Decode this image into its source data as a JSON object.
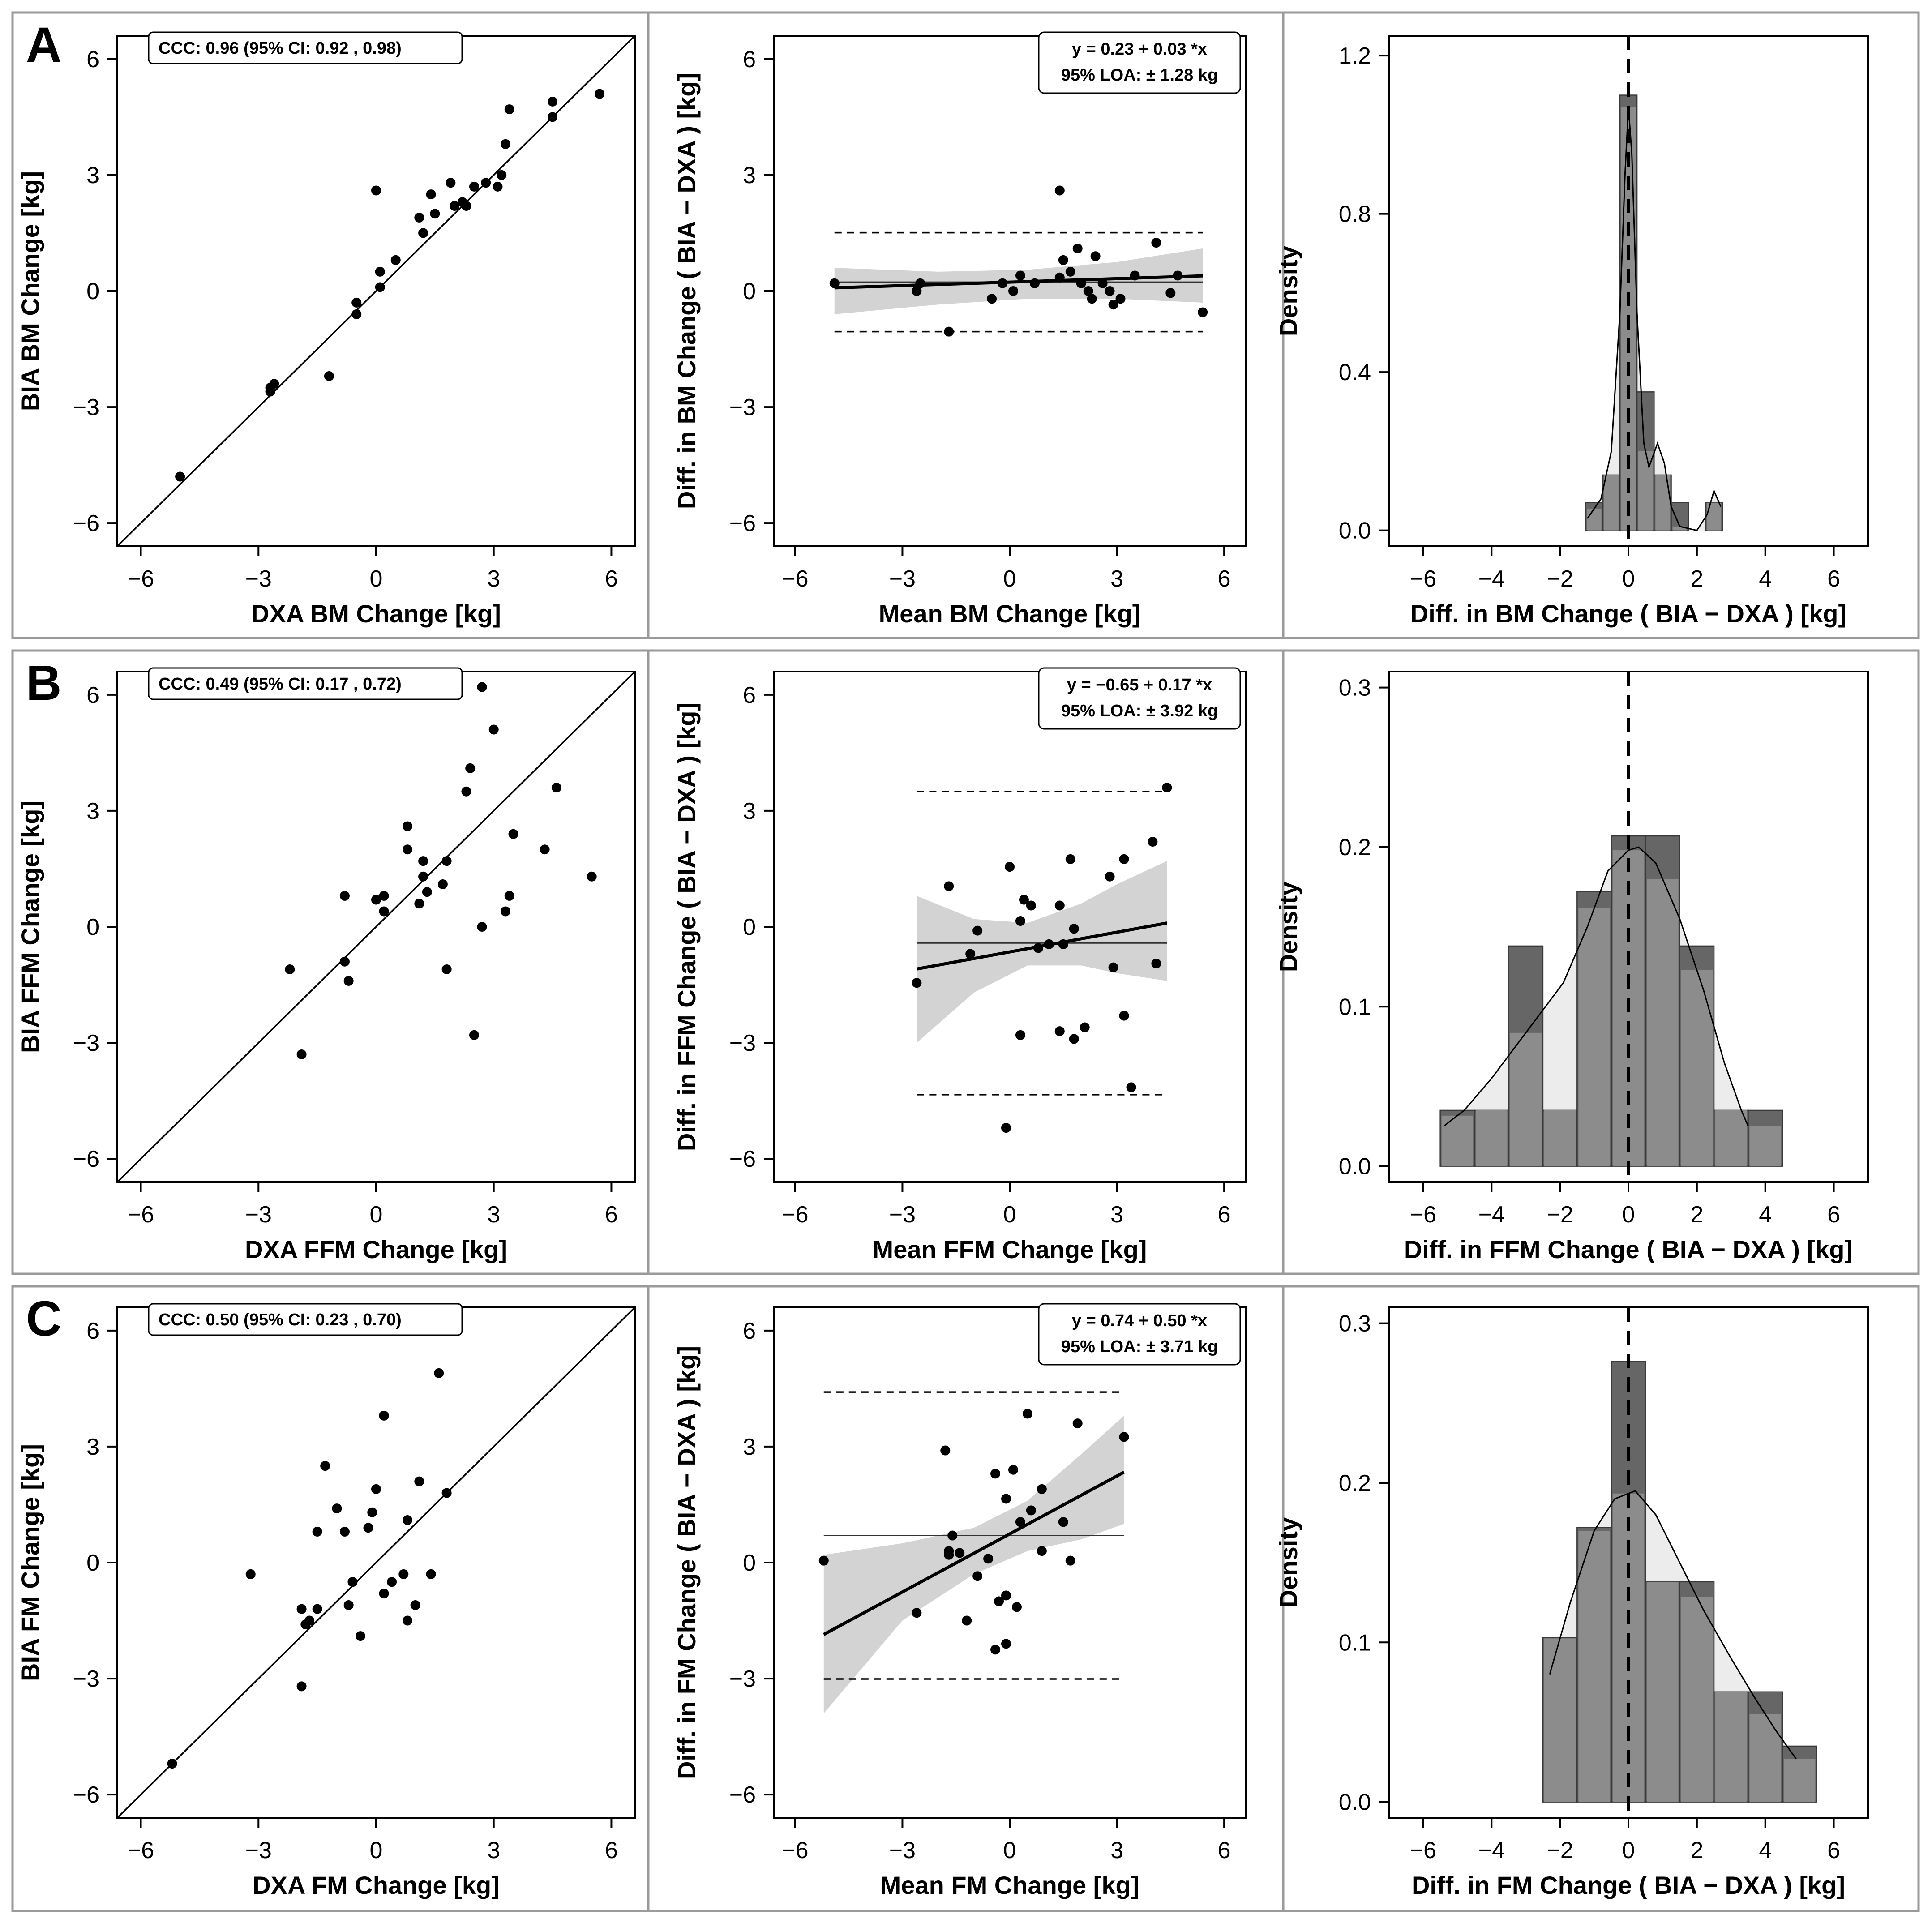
{
  "rows": [
    {
      "letter": "A",
      "scatter": {
        "xlabel": "DXA BM Change [kg]",
        "ylabel": "BIA BM Change [kg]",
        "ccc_text": "CCC:  0.96 (95% CI: 0.92 , 0.98)",
        "points": [
          [
            -5.0,
            -4.8
          ],
          [
            -2.7,
            -2.6
          ],
          [
            -2.7,
            -2.5
          ],
          [
            -2.6,
            -2.4
          ],
          [
            -1.2,
            -2.2
          ],
          [
            -0.5,
            -0.3
          ],
          [
            -0.5,
            -0.6
          ],
          [
            0.0,
            2.6
          ],
          [
            0.1,
            0.1
          ],
          [
            0.1,
            0.5
          ],
          [
            0.5,
            0.8
          ],
          [
            1.1,
            1.9
          ],
          [
            1.2,
            1.5
          ],
          [
            1.4,
            2.5
          ],
          [
            1.5,
            2.0
          ],
          [
            1.9,
            2.8
          ],
          [
            2.0,
            2.2
          ],
          [
            2.2,
            2.3
          ],
          [
            2.3,
            2.2
          ],
          [
            2.5,
            2.7
          ],
          [
            2.8,
            2.8
          ],
          [
            3.1,
            2.7
          ],
          [
            3.2,
            3.0
          ],
          [
            3.3,
            3.8
          ],
          [
            3.4,
            4.7
          ],
          [
            4.5,
            4.9
          ],
          [
            4.5,
            4.5
          ],
          [
            5.7,
            5.1
          ]
        ]
      },
      "bland": {
        "xlabel": "Mean BM Change [kg]",
        "ylabel": "Diff. in BM Change ( BIA − DXA ) [kg]",
        "eq_text": "y =  0.23 + 0.03 *x",
        "loa_text": "95% LOA: ± 1.28 kg",
        "intercept": 0.23,
        "slope": 0.03,
        "mean": 0.23,
        "upper_loa": 1.51,
        "lower_loa": -1.05,
        "line_range": [
          -4.9,
          5.4
        ],
        "band": [
          [
            -4.9,
            -0.6,
            0.6
          ],
          [
            -2.0,
            -0.35,
            0.5
          ],
          [
            0.5,
            -0.2,
            0.55
          ],
          [
            3.0,
            -0.2,
            0.75
          ],
          [
            5.4,
            -0.3,
            1.1
          ]
        ],
        "points": [
          [
            -4.9,
            0.2
          ],
          [
            -2.6,
            0.0
          ],
          [
            -2.5,
            0.2
          ],
          [
            -1.7,
            -1.05
          ],
          [
            -0.5,
            -0.2
          ],
          [
            -0.2,
            0.2
          ],
          [
            0.1,
            0.0
          ],
          [
            0.3,
            0.4
          ],
          [
            0.7,
            0.2
          ],
          [
            1.4,
            2.6
          ],
          [
            1.4,
            0.35
          ],
          [
            1.5,
            0.8
          ],
          [
            1.7,
            0.5
          ],
          [
            1.9,
            1.1
          ],
          [
            2.0,
            0.2
          ],
          [
            2.2,
            0.0
          ],
          [
            2.3,
            -0.2
          ],
          [
            2.4,
            0.9
          ],
          [
            2.6,
            0.2
          ],
          [
            2.8,
            0.0
          ],
          [
            2.9,
            -0.35
          ],
          [
            3.1,
            -0.2
          ],
          [
            3.5,
            0.4
          ],
          [
            4.1,
            1.25
          ],
          [
            4.5,
            -0.05
          ],
          [
            4.7,
            0.4
          ],
          [
            5.4,
            -0.55
          ]
        ]
      },
      "hist": {
        "xlabel": "Diff. in BM Change ( BIA − DXA ) [kg]",
        "ylabel": "Density",
        "ylim": [
          0,
          1.25
        ],
        "yticks": [
          0.0,
          0.4,
          0.8,
          1.2
        ],
        "bins": [
          [
            -1.25,
            -0.75,
            0.07
          ],
          [
            -0.75,
            -0.25,
            0.14
          ],
          [
            -0.25,
            0.25,
            1.1
          ],
          [
            0.25,
            0.75,
            0.35
          ],
          [
            0.75,
            1.25,
            0.14
          ],
          [
            1.25,
            1.75,
            0.07
          ],
          [
            2.25,
            2.75,
            0.07
          ]
        ],
        "curve": [
          [
            -1.2,
            0.03
          ],
          [
            -0.8,
            0.08
          ],
          [
            -0.5,
            0.2
          ],
          [
            -0.25,
            0.55
          ],
          [
            -0.1,
            0.9
          ],
          [
            0.0,
            1.07
          ],
          [
            0.1,
            0.95
          ],
          [
            0.25,
            0.55
          ],
          [
            0.45,
            0.22
          ],
          [
            0.6,
            0.16
          ],
          [
            0.85,
            0.22
          ],
          [
            1.05,
            0.17
          ],
          [
            1.25,
            0.06
          ],
          [
            1.5,
            0.01
          ],
          [
            2.0,
            0.0
          ],
          [
            2.3,
            0.04
          ],
          [
            2.5,
            0.1
          ],
          [
            2.7,
            0.06
          ]
        ]
      }
    },
    {
      "letter": "B",
      "scatter": {
        "xlabel": "DXA FFM Change [kg]",
        "ylabel": "BIA FFM Change [kg]",
        "ccc_text": "CCC:  0.49 (95% CI: 0.17 , 0.72)",
        "points": [
          [
            -2.2,
            -1.1
          ],
          [
            -1.9,
            -3.3
          ],
          [
            -0.8,
            0.8
          ],
          [
            -0.8,
            -0.9
          ],
          [
            -0.7,
            -1.4
          ],
          [
            0.0,
            0.7
          ],
          [
            0.2,
            0.8
          ],
          [
            0.2,
            0.4
          ],
          [
            0.8,
            2.0
          ],
          [
            0.8,
            2.6
          ],
          [
            1.1,
            0.6
          ],
          [
            1.2,
            1.7
          ],
          [
            1.3,
            0.9
          ],
          [
            1.2,
            1.3
          ],
          [
            1.7,
            1.1
          ],
          [
            1.8,
            1.7
          ],
          [
            1.8,
            -1.1
          ],
          [
            2.3,
            3.5
          ],
          [
            2.4,
            4.1
          ],
          [
            2.5,
            -2.8
          ],
          [
            2.7,
            6.2
          ],
          [
            2.7,
            0.0
          ],
          [
            3.0,
            5.1
          ],
          [
            3.3,
            0.4
          ],
          [
            3.4,
            0.8
          ],
          [
            3.5,
            2.4
          ],
          [
            4.3,
            2.0
          ],
          [
            4.6,
            3.6
          ],
          [
            5.5,
            1.3
          ]
        ]
      },
      "bland": {
        "xlabel": "Mean FFM Change [kg]",
        "ylabel": "Diff. in FFM Change ( BIA − DXA ) [kg]",
        "eq_text": "y =  −0.65 + 0.17 *x",
        "loa_text": "95% LOA: ± 3.92 kg",
        "intercept": -0.65,
        "slope": 0.17,
        "mean": -0.42,
        "upper_loa": 3.5,
        "lower_loa": -4.34,
        "line_range": [
          -2.6,
          4.4
        ],
        "band": [
          [
            -2.6,
            -3.0,
            0.8
          ],
          [
            -1.0,
            -1.7,
            0.2
          ],
          [
            0.5,
            -1.0,
            0.1
          ],
          [
            2.0,
            -1.0,
            0.6
          ],
          [
            3.0,
            -1.2,
            1.1
          ],
          [
            4.4,
            -1.4,
            1.7
          ]
        ],
        "points": [
          [
            -2.6,
            -1.45
          ],
          [
            -1.7,
            1.05
          ],
          [
            -1.1,
            -0.7
          ],
          [
            -0.9,
            -0.1
          ],
          [
            -0.1,
            -5.2
          ],
          [
            0.0,
            1.55
          ],
          [
            0.3,
            0.15
          ],
          [
            0.3,
            -2.8
          ],
          [
            0.4,
            0.7
          ],
          [
            0.6,
            0.55
          ],
          [
            0.8,
            -0.55
          ],
          [
            1.1,
            -0.45
          ],
          [
            1.4,
            0.55
          ],
          [
            1.4,
            -2.7
          ],
          [
            1.5,
            -0.45
          ],
          [
            1.7,
            1.75
          ],
          [
            1.8,
            -0.05
          ],
          [
            1.8,
            -2.9
          ],
          [
            2.1,
            -2.6
          ],
          [
            2.8,
            1.3
          ],
          [
            2.9,
            -1.05
          ],
          [
            3.2,
            -2.3
          ],
          [
            3.2,
            1.75
          ],
          [
            3.4,
            -4.15
          ],
          [
            4.0,
            2.2
          ],
          [
            4.1,
            -0.95
          ],
          [
            4.4,
            3.6
          ]
        ]
      },
      "hist": {
        "xlabel": "Diff. in FFM Change ( BIA − DXA ) [kg]",
        "ylabel": "Density",
        "ylim": [
          0,
          0.31
        ],
        "yticks": [
          0.0,
          0.1,
          0.2,
          0.3
        ],
        "bins": [
          [
            -5.5,
            -4.5,
            0.035
          ],
          [
            -4.5,
            -3.5,
            0.035
          ],
          [
            -3.5,
            -2.5,
            0.138
          ],
          [
            -2.5,
            -1.5,
            0.035
          ],
          [
            -1.5,
            -0.5,
            0.172
          ],
          [
            -0.5,
            0.5,
            0.207
          ],
          [
            0.5,
            1.5,
            0.207
          ],
          [
            1.5,
            2.5,
            0.138
          ],
          [
            2.5,
            3.5,
            0.035
          ],
          [
            3.5,
            4.5,
            0.035
          ]
        ],
        "curve": [
          [
            -5.4,
            0.025
          ],
          [
            -4.8,
            0.035
          ],
          [
            -4.0,
            0.055
          ],
          [
            -3.3,
            0.075
          ],
          [
            -2.6,
            0.095
          ],
          [
            -1.9,
            0.115
          ],
          [
            -1.2,
            0.15
          ],
          [
            -0.6,
            0.185
          ],
          [
            0.0,
            0.198
          ],
          [
            0.3,
            0.2
          ],
          [
            0.8,
            0.19
          ],
          [
            1.5,
            0.155
          ],
          [
            2.2,
            0.11
          ],
          [
            2.8,
            0.065
          ],
          [
            3.3,
            0.035
          ],
          [
            3.5,
            0.025
          ]
        ]
      }
    },
    {
      "letter": "C",
      "scatter": {
        "xlabel": "DXA FM Change [kg]",
        "ylabel": "BIA FM Change [kg]",
        "ccc_text": "CCC:  0.50 (95% CI: 0.23 , 0.70)",
        "points": [
          [
            -5.2,
            -5.2
          ],
          [
            -3.2,
            -0.3
          ],
          [
            -1.9,
            -1.2
          ],
          [
            -1.9,
            -3.2
          ],
          [
            -1.7,
            -1.5
          ],
          [
            -1.8,
            -1.6
          ],
          [
            -1.5,
            -1.2
          ],
          [
            -1.5,
            0.8
          ],
          [
            -1.3,
            2.5
          ],
          [
            -1.0,
            1.4
          ],
          [
            -0.8,
            0.8
          ],
          [
            -0.7,
            -1.1
          ],
          [
            -0.6,
            -0.5
          ],
          [
            -0.4,
            -1.9
          ],
          [
            -0.2,
            0.9
          ],
          [
            -0.1,
            1.3
          ],
          [
            0.0,
            1.9
          ],
          [
            0.2,
            -0.8
          ],
          [
            0.2,
            3.8
          ],
          [
            0.4,
            -0.5
          ],
          [
            0.7,
            -0.3
          ],
          [
            0.8,
            1.1
          ],
          [
            0.8,
            -1.5
          ],
          [
            1.0,
            -1.1
          ],
          [
            1.1,
            2.1
          ],
          [
            1.4,
            -0.3
          ],
          [
            1.6,
            4.9
          ],
          [
            1.8,
            1.8
          ]
        ]
      },
      "bland": {
        "xlabel": "Mean FM Change [kg]",
        "ylabel": "Diff. in FM Change ( BIA − DXA ) [kg]",
        "eq_text": "y =  0.74 + 0.50 *x",
        "loa_text": "95% LOA: ± 3.71 kg",
        "intercept": 0.74,
        "slope": 0.5,
        "mean": 0.7,
        "upper_loa": 4.41,
        "lower_loa": -3.01,
        "line_range": [
          -5.2,
          3.2
        ],
        "band": [
          [
            -5.2,
            -3.9,
            0.2
          ],
          [
            -3.0,
            -1.5,
            0.5
          ],
          [
            -1.0,
            -0.3,
            0.9
          ],
          [
            0.5,
            0.3,
            1.6
          ],
          [
            2.0,
            0.6,
            2.8
          ],
          [
            3.2,
            1.0,
            3.8
          ]
        ],
        "points": [
          [
            -5.2,
            0.05
          ],
          [
            -2.6,
            -1.3
          ],
          [
            -1.8,
            2.9
          ],
          [
            -1.7,
            0.2
          ],
          [
            -1.7,
            0.3
          ],
          [
            -1.6,
            0.7
          ],
          [
            -1.4,
            0.25
          ],
          [
            -1.2,
            -1.5
          ],
          [
            -0.9,
            -0.35
          ],
          [
            -0.6,
            0.1
          ],
          [
            -0.4,
            2.3
          ],
          [
            -0.4,
            -2.25
          ],
          [
            -0.3,
            -1.0
          ],
          [
            -0.1,
            1.65
          ],
          [
            -0.1,
            -0.85
          ],
          [
            -0.1,
            -2.1
          ],
          [
            0.1,
            2.4
          ],
          [
            0.2,
            -1.15
          ],
          [
            0.3,
            1.05
          ],
          [
            0.5,
            3.85
          ],
          [
            0.6,
            1.35
          ],
          [
            0.9,
            0.3
          ],
          [
            0.9,
            1.9
          ],
          [
            1.5,
            1.05
          ],
          [
            1.7,
            0.05
          ],
          [
            1.9,
            3.6
          ],
          [
            3.2,
            3.25
          ]
        ]
      },
      "hist": {
        "xlabel": "Diff. in FM Change ( BIA − DXA ) [kg]",
        "ylabel": "Density",
        "ylim": [
          0,
          0.31
        ],
        "yticks": [
          0.0,
          0.1,
          0.2,
          0.3
        ],
        "bins": [
          [
            -2.5,
            -1.5,
            0.103
          ],
          [
            -1.5,
            -0.5,
            0.172
          ],
          [
            -0.5,
            0.5,
            0.276
          ],
          [
            0.5,
            1.5,
            0.138
          ],
          [
            1.5,
            2.5,
            0.138
          ],
          [
            2.5,
            3.5,
            0.069
          ],
          [
            3.5,
            4.5,
            0.069
          ],
          [
            4.5,
            5.5,
            0.035
          ]
        ],
        "curve": [
          [
            -2.3,
            0.08
          ],
          [
            -1.7,
            0.125
          ],
          [
            -1.0,
            0.17
          ],
          [
            -0.4,
            0.19
          ],
          [
            0.2,
            0.195
          ],
          [
            0.8,
            0.18
          ],
          [
            1.5,
            0.15
          ],
          [
            2.2,
            0.12
          ],
          [
            3.0,
            0.09
          ],
          [
            3.7,
            0.065
          ],
          [
            4.3,
            0.045
          ],
          [
            4.9,
            0.027
          ]
        ]
      }
    }
  ],
  "common_ticks": [
    -6,
    -3,
    0,
    3,
    6
  ],
  "hist_xticks": [
    -6,
    -4,
    -2,
    0,
    2,
    4,
    6
  ],
  "colors": {
    "point": "#000000",
    "band": "#d3d3d3",
    "hist_dark": "#666666",
    "hist_light": "#8c8c8c",
    "hist_overlay": "#ececec",
    "frame": "#9a9a9a"
  }
}
